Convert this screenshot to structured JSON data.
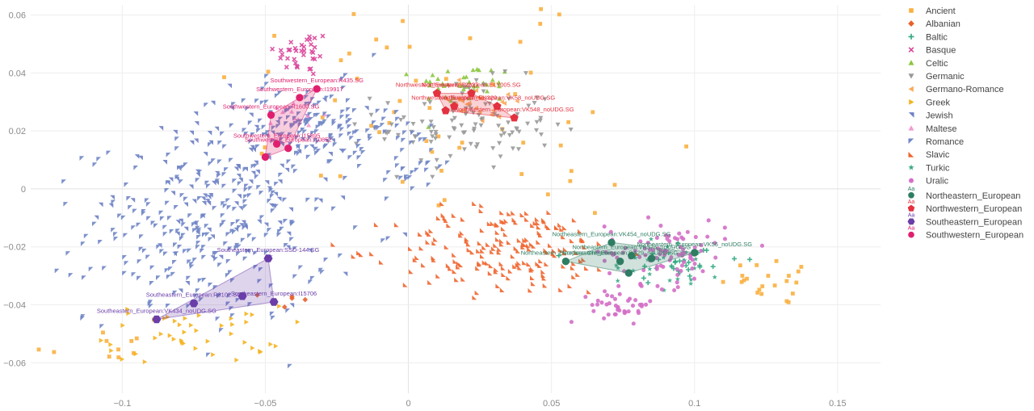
{
  "chart_data": {
    "type": "scatter",
    "xlim": [
      -0.132,
      0.165
    ],
    "ylim": [
      -0.0705,
      0.0635
    ],
    "x_ticks": [
      {
        "value": -0.1,
        "label": "−0.1"
      },
      {
        "value": -0.05,
        "label": "−0.05"
      },
      {
        "value": 0,
        "label": "0"
      },
      {
        "value": 0.05,
        "label": "0.05"
      },
      {
        "value": 0.1,
        "label": "0.1"
      },
      {
        "value": 0.15,
        "label": "0.15"
      }
    ],
    "y_ticks": [
      {
        "value": 0.06,
        "label": "0.06"
      },
      {
        "value": 0.04,
        "label": "0.04"
      },
      {
        "value": 0.02,
        "label": "0.02"
      },
      {
        "value": 0,
        "label": "0"
      },
      {
        "value": -0.02,
        "label": "−0.02"
      },
      {
        "value": -0.04,
        "label": "−0.04"
      },
      {
        "value": -0.06,
        "label": "−0.06"
      }
    ],
    "grid": true,
    "legend_position": "right",
    "background_groups": [
      {
        "name": "Ancient",
        "color": "#FAB040",
        "symbol": "square",
        "clusters": [
          [
            0.0,
            0.03,
            0.05,
            0.03,
            45
          ],
          [
            0.13,
            -0.032,
            0.015,
            0.006,
            22
          ],
          [
            -0.11,
            -0.054,
            0.015,
            0.005,
            10
          ],
          [
            0.055,
            0.01,
            0.02,
            0.015,
            10
          ]
        ]
      },
      {
        "name": "Albanian",
        "color": "#E8602C",
        "symbol": "diamond",
        "clusters": [
          [
            -0.042,
            -0.039,
            0.006,
            0.003,
            5
          ]
        ]
      },
      {
        "name": "Baltic",
        "color": "#2EA87E",
        "symbol": "plus",
        "clusters": [
          [
            0.095,
            -0.025,
            0.015,
            0.006,
            30
          ]
        ]
      },
      {
        "name": "Basque",
        "color": "#D9459A",
        "symbol": "x",
        "clusters": [
          [
            -0.037,
            0.047,
            0.007,
            0.006,
            35
          ]
        ]
      },
      {
        "name": "Celtic",
        "color": "#8CC63F",
        "symbol": "triangle-up",
        "clusters": [
          [
            0.02,
            0.036,
            0.012,
            0.005,
            40
          ]
        ]
      },
      {
        "name": "Germanic",
        "color": "#999999",
        "symbol": "triangle-down",
        "clusters": [
          [
            0.02,
            0.022,
            0.022,
            0.011,
            110
          ]
        ]
      },
      {
        "name": "Germano-Romance",
        "color": "#FAAA5A",
        "symbol": "triangle-left",
        "clusters": [
          [
            0.025,
            0.03,
            0.012,
            0.006,
            25
          ]
        ]
      },
      {
        "name": "Greek",
        "color": "#F5B31E",
        "symbol": "triangle-right",
        "clusters": [
          [
            -0.075,
            -0.05,
            0.022,
            0.007,
            45
          ]
        ]
      },
      {
        "name": "Jewish",
        "color": "#6D80C4",
        "symbol": "triangle-ne",
        "clusters": [
          [
            -0.06,
            0.0,
            0.03,
            0.02,
            120
          ]
        ]
      },
      {
        "name": "Maltese",
        "color": "#F29BD3",
        "symbol": "triangle-up",
        "clusters": [
          [
            -0.04,
            0.025,
            0.008,
            0.005,
            12
          ]
        ]
      },
      {
        "name": "Romance",
        "color": "#7086C7",
        "symbol": "triangle-nw",
        "clusters": [
          [
            -0.07,
            -0.015,
            0.03,
            0.022,
            260
          ],
          [
            -0.035,
            0.022,
            0.02,
            0.01,
            140
          ],
          [
            0.0,
            0.012,
            0.015,
            0.01,
            40
          ]
        ]
      },
      {
        "name": "Slavic",
        "color": "#F06630",
        "symbol": "triangle-sw",
        "clusters": [
          [
            0.035,
            -0.021,
            0.028,
            0.011,
            190
          ]
        ]
      },
      {
        "name": "Turkic",
        "color": "#3AAA86",
        "symbol": "star",
        "clusters": [
          [
            0.09,
            -0.025,
            0.015,
            0.007,
            25
          ]
        ]
      },
      {
        "name": "Uralic",
        "color": "#D46FC7",
        "symbol": "circle",
        "clusters": [
          [
            0.09,
            -0.022,
            0.015,
            0.008,
            90
          ],
          [
            0.075,
            -0.04,
            0.008,
            0.004,
            40
          ]
        ]
      }
    ],
    "highlight_groups": [
      {
        "name": "Northeastern_European",
        "color": "#2E7D62",
        "symbol": "circle",
        "points": [
          {
            "x": 0.071,
            "y": -0.0185,
            "label": "Northeastern_European:VK454_noUDG.SG"
          },
          {
            "x": 0.1,
            "y": -0.022,
            "label": "Northeastern_European:VK56_noUDG.SG"
          },
          {
            "x": 0.078,
            "y": -0.023,
            "label": "Northeastern_European:VK375_noUDG.SG"
          },
          {
            "x": 0.055,
            "y": -0.025,
            "label": "Northeastern_European:Chlopice"
          },
          {
            "x": 0.074,
            "y": -0.025,
            "label": "Northeastern_European:DA29_noUDG.SG"
          },
          {
            "x": 0.085,
            "y": -0.024,
            "label": ""
          },
          {
            "x": 0.077,
            "y": -0.029,
            "label": ""
          }
        ]
      },
      {
        "name": "Northwestern_European",
        "color": "#E33140",
        "symbol": "pentagon",
        "points": [
          {
            "x": 0.022,
            "y": 0.033,
            "label": "Northwestern_European:ELY005.SG"
          },
          {
            "x": 0.01,
            "y": 0.033,
            "label": "Northwestern_European:I2227"
          },
          {
            "x": 0.031,
            "y": 0.0285,
            "label": "Northwestern_European:VK58_noUDG.SG"
          },
          {
            "x": 0.016,
            "y": 0.0285,
            "label": "Northwestern_European:VK320"
          },
          {
            "x": 0.037,
            "y": 0.0245,
            "label": "Northwestern_European:VK548_noUDG.SG"
          },
          {
            "x": 0.013,
            "y": 0.027,
            "label": ""
          }
        ]
      },
      {
        "name": "Southeastern_European",
        "color": "#6A3DA8",
        "symbol": "hexagon",
        "points": [
          {
            "x": -0.049,
            "y": -0.024,
            "label": "Southeastern_European:SSD-144.SG"
          },
          {
            "x": -0.075,
            "y": -0.0395,
            "label": "Southeastern_European:R3102.SG"
          },
          {
            "x": -0.047,
            "y": -0.039,
            "label": "Southeastern_European:I15706"
          },
          {
            "x": -0.088,
            "y": -0.045,
            "label": "Southeastern_European:VK434_noUDG.SG"
          },
          {
            "x": -0.058,
            "y": -0.037,
            "label": ""
          }
        ]
      },
      {
        "name": "Southwestern_European",
        "color": "#E0206E",
        "symbol": "circle",
        "points": [
          {
            "x": -0.032,
            "y": 0.0345,
            "label": "Southwestern_European:R435.SG"
          },
          {
            "x": -0.038,
            "y": 0.0315,
            "label": "Southwestern_European:I19917"
          },
          {
            "x": -0.048,
            "y": 0.0255,
            "label": "Southwestern_European:R1600.SG"
          },
          {
            "x": -0.046,
            "y": 0.0155,
            "label": "Southwestern_European:I15895"
          },
          {
            "x": -0.042,
            "y": 0.014,
            "label": "Southwestern_European:I10852"
          },
          {
            "x": -0.05,
            "y": 0.011,
            "label": ""
          }
        ]
      }
    ]
  },
  "legend": {
    "entries": [
      {
        "name": "Ancient",
        "kind": "bg",
        "symbol": "square",
        "color": "#FAB040"
      },
      {
        "name": "Albanian",
        "kind": "bg",
        "symbol": "diamond",
        "color": "#E8602C"
      },
      {
        "name": "Baltic",
        "kind": "bg",
        "symbol": "plus",
        "color": "#2EA87E"
      },
      {
        "name": "Basque",
        "kind": "bg",
        "symbol": "x",
        "color": "#D9459A"
      },
      {
        "name": "Celtic",
        "kind": "bg",
        "symbol": "triangle-up",
        "color": "#8CC63F"
      },
      {
        "name": "Germanic",
        "kind": "bg",
        "symbol": "triangle-down",
        "color": "#999999"
      },
      {
        "name": "Germano-Romance",
        "kind": "bg",
        "symbol": "triangle-left",
        "color": "#FAAA5A"
      },
      {
        "name": "Greek",
        "kind": "bg",
        "symbol": "triangle-right",
        "color": "#F5B31E"
      },
      {
        "name": "Jewish",
        "kind": "bg",
        "symbol": "triangle-ne",
        "color": "#6D80C4"
      },
      {
        "name": "Maltese",
        "kind": "bg",
        "symbol": "triangle-up",
        "color": "#F29BD3"
      },
      {
        "name": "Romance",
        "kind": "bg",
        "symbol": "triangle-nw",
        "color": "#7086C7"
      },
      {
        "name": "Slavic",
        "kind": "bg",
        "symbol": "triangle-sw",
        "color": "#F06630"
      },
      {
        "name": "Turkic",
        "kind": "bg",
        "symbol": "star",
        "color": "#3AAA86"
      },
      {
        "name": "Uralic",
        "kind": "bg",
        "symbol": "circle",
        "color": "#D46FC7"
      },
      {
        "name": "Northeastern_European",
        "kind": "hl",
        "symbol": "circle",
        "color": "#2E7D62",
        "aa": "Aa"
      },
      {
        "name": "Northwestern_European",
        "kind": "hl",
        "symbol": "pentagon",
        "color": "#E33140",
        "aa": "Aa"
      },
      {
        "name": "Southeastern_European",
        "kind": "hl",
        "symbol": "hexagon",
        "color": "#6A3DA8",
        "aa": "Aa"
      },
      {
        "name": "Southwestern_European",
        "kind": "hl",
        "symbol": "circle",
        "color": "#E0206E",
        "aa": "Aa"
      }
    ]
  }
}
